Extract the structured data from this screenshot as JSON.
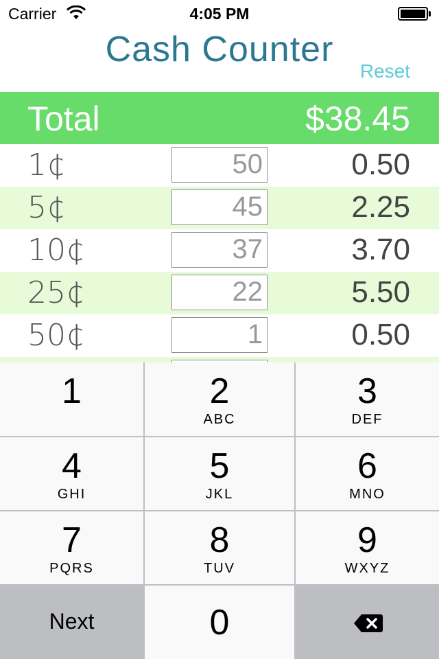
{
  "status_bar": {
    "carrier": "Carrier",
    "time": "4:05 PM"
  },
  "nav": {
    "title": "Cash Counter",
    "reset_label": "Reset"
  },
  "total": {
    "label": "Total",
    "amount": "$38.45",
    "color": "#67dc6a"
  },
  "rows": [
    {
      "denomination": "1¢",
      "count": "50",
      "subtotal": "0.50"
    },
    {
      "denomination": "5¢",
      "count": "45",
      "subtotal": "2.25"
    },
    {
      "denomination": "10¢",
      "count": "37",
      "subtotal": "3.70"
    },
    {
      "denomination": "25¢",
      "count": "22",
      "subtotal": "5.50"
    },
    {
      "denomination": "50¢",
      "count": "1",
      "subtotal": "0.50"
    }
  ],
  "keypad": {
    "keys": [
      {
        "num": "1",
        "letters": ""
      },
      {
        "num": "2",
        "letters": "ABC"
      },
      {
        "num": "3",
        "letters": "DEF"
      },
      {
        "num": "4",
        "letters": "GHI"
      },
      {
        "num": "5",
        "letters": "JKL"
      },
      {
        "num": "6",
        "letters": "MNO"
      },
      {
        "num": "7",
        "letters": "PQRS"
      },
      {
        "num": "8",
        "letters": "TUV"
      },
      {
        "num": "9",
        "letters": "WXYZ"
      }
    ],
    "next_label": "Next",
    "zero": "0",
    "backspace_icon": "backspace-icon"
  }
}
